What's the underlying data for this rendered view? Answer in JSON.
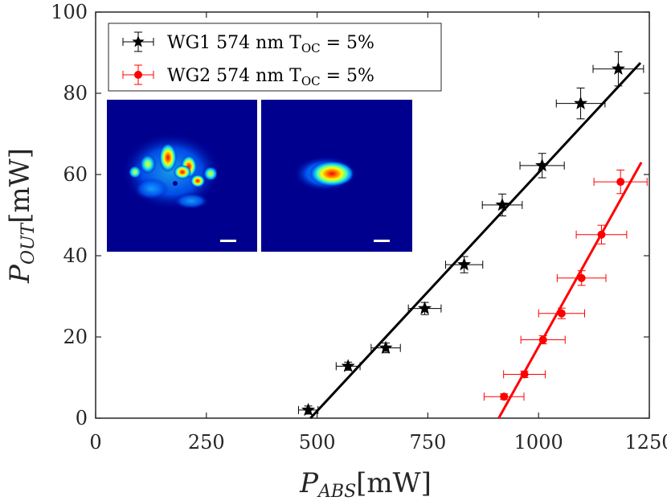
{
  "chart_data": {
    "type": "scatter",
    "x_axis": {
      "label_main": "P",
      "label_sub": "ABS",
      "label_unit": "[mW]",
      "range": [
        0,
        1250
      ],
      "ticks": [
        0,
        250,
        500,
        750,
        1000,
        1250
      ]
    },
    "y_axis": {
      "label_main": "P",
      "label_sub": "OUT",
      "label_unit": "[mW]",
      "range": [
        0,
        100
      ],
      "ticks": [
        0,
        20,
        40,
        60,
        80,
        100
      ]
    },
    "series": [
      {
        "name": "WG1 574 nm T_OC = 5%",
        "legend_main": "WG1 574 nm T",
        "legend_sub": "OC",
        "legend_tail": " = 5%",
        "color": "#000000",
        "marker": "star",
        "points": [
          {
            "x": 480,
            "y": 2.0,
            "xerr": 22,
            "yerr": 1.0
          },
          {
            "x": 570,
            "y": 12.8,
            "xerr": 27,
            "yerr": 1.0
          },
          {
            "x": 655,
            "y": 17.3,
            "xerr": 33,
            "yerr": 1.2
          },
          {
            "x": 743,
            "y": 27.0,
            "xerr": 37,
            "yerr": 1.5
          },
          {
            "x": 832,
            "y": 37.8,
            "xerr": 42,
            "yerr": 2.0
          },
          {
            "x": 918,
            "y": 52.5,
            "xerr": 45,
            "yerr": 2.7
          },
          {
            "x": 1008,
            "y": 62.2,
            "xerr": 50,
            "yerr": 3.0
          },
          {
            "x": 1095,
            "y": 77.5,
            "xerr": 55,
            "yerr": 3.8
          },
          {
            "x": 1180,
            "y": 86.0,
            "xerr": 57,
            "yerr": 4.2
          }
        ],
        "fit": {
          "x": [
            485,
            1230
          ],
          "y": [
            0,
            87.5
          ]
        }
      },
      {
        "name": "WG2 574 nm T_OC = 5%",
        "legend_main": "WG2 574 nm T",
        "legend_sub": "OC",
        "legend_tail": " = 5%",
        "color": "#ff0000",
        "marker": "circle",
        "points": [
          {
            "x": 922,
            "y": 5.3,
            "xerr": 45,
            "yerr": 0.7
          },
          {
            "x": 968,
            "y": 10.8,
            "xerr": 47,
            "yerr": 0.8
          },
          {
            "x": 1010,
            "y": 19.3,
            "xerr": 50,
            "yerr": 1.0
          },
          {
            "x": 1052,
            "y": 25.8,
            "xerr": 52,
            "yerr": 1.3
          },
          {
            "x": 1097,
            "y": 34.5,
            "xerr": 55,
            "yerr": 1.8
          },
          {
            "x": 1142,
            "y": 45.2,
            "xerr": 57,
            "yerr": 2.3
          },
          {
            "x": 1185,
            "y": 58.2,
            "xerr": 60,
            "yerr": 2.9
          }
        ],
        "fit": {
          "x": [
            910,
            1232
          ],
          "y": [
            0,
            63
          ]
        }
      }
    ],
    "grid": false,
    "legend_position": "top-left",
    "inset": {
      "panels": 2,
      "background": "#00008f"
    }
  }
}
